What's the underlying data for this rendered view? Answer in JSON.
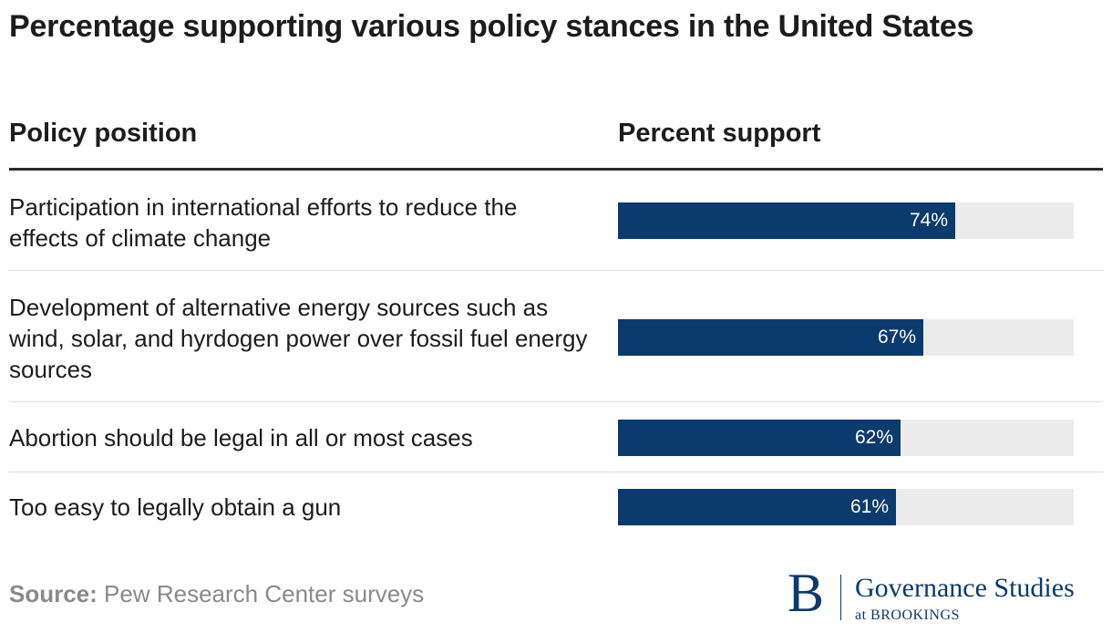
{
  "title": "Percentage supporting various policy stances in the United States",
  "headers": {
    "policy": "Policy position",
    "support": "Percent support"
  },
  "colors": {
    "bar": "#0b3a6e",
    "track": "#ececec",
    "brand": "#0b3a6e"
  },
  "chart_data": {
    "type": "bar",
    "orientation": "horizontal",
    "categories": [
      "Participation in international efforts to reduce the effects of climate change",
      "Development of alternative energy sources such as wind, solar, and hyrdogen power over fossil fuel energy sources",
      "Abortion should be legal in all or most cases",
      "Too easy to legally obtain a gun"
    ],
    "values": [
      74,
      67,
      62,
      61
    ],
    "value_labels": [
      "74%",
      "67%",
      "62%",
      "61%"
    ],
    "xlim": [
      0,
      100
    ]
  },
  "source": {
    "label": "Source:",
    "text": "Pew Research Center surveys"
  },
  "logo": {
    "mark": "B",
    "name": "Governance Studies",
    "sub": "at BROOKINGS"
  }
}
